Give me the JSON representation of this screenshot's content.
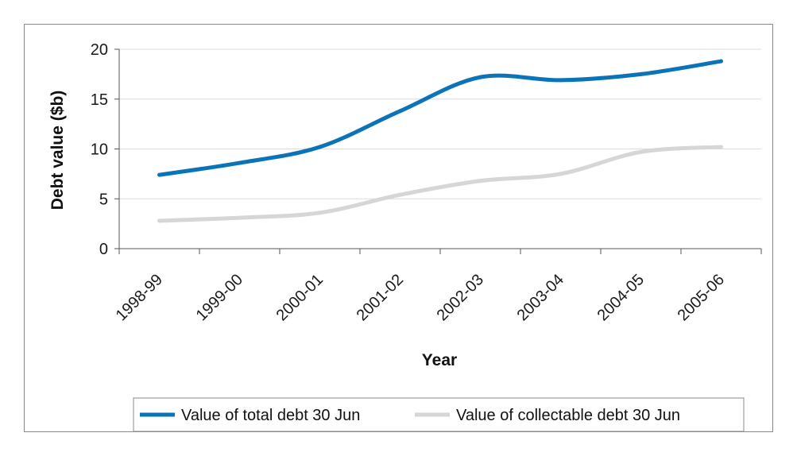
{
  "chart_data": {
    "type": "line",
    "xlabel": "Year",
    "ylabel": "Debt value ($b)",
    "categories": [
      "1998-99",
      "1999-00",
      "2000-01",
      "2001-02",
      "2002-03",
      "2003-04",
      "2004-05",
      "2005-06"
    ],
    "ylim": [
      0,
      20
    ],
    "yticks": [
      0,
      5,
      10,
      15,
      20
    ],
    "grid": true,
    "legend_position": "bottom",
    "series": [
      {
        "name": "Value of total debt 30 Jun",
        "color": "#0b74b8",
        "values": [
          7.4,
          8.6,
          10.2,
          13.8,
          17.2,
          16.9,
          17.5,
          18.8
        ]
      },
      {
        "name": "Value of collectable debt 30 Jun",
        "color": "#d6d6d6",
        "values": [
          2.8,
          3.1,
          3.6,
          5.4,
          6.8,
          7.5,
          9.7,
          10.2
        ]
      }
    ]
  }
}
